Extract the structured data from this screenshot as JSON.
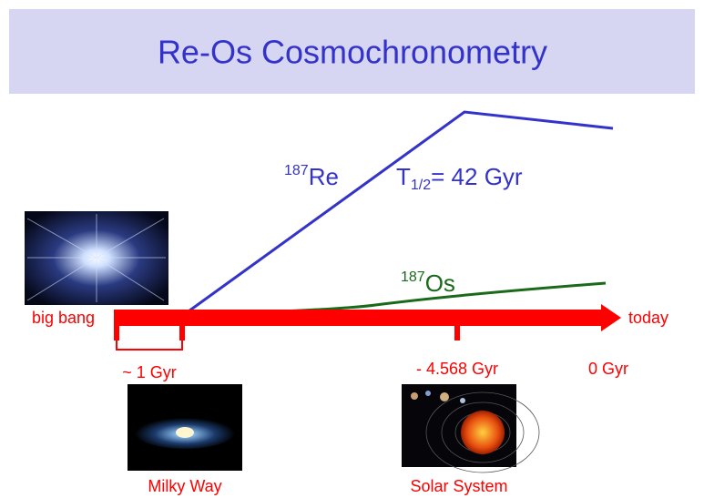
{
  "header": {
    "title": "Re-Os Cosmochronometry"
  },
  "curves": {
    "re": {
      "mass": "187",
      "element": "Re"
    },
    "half_life": {
      "symbol": "T",
      "subscript": "1/2",
      "value": "= 42 Gyr"
    },
    "os": {
      "mass": "187",
      "element": "Os"
    }
  },
  "timeline": {
    "start": "big bang",
    "end": "today",
    "marks": [
      "~ 1 Gyr",
      "- 4.568 Gyr",
      "0 Gyr"
    ]
  },
  "images": {
    "galaxy": "Milky Way",
    "solar": "Solar System"
  }
}
